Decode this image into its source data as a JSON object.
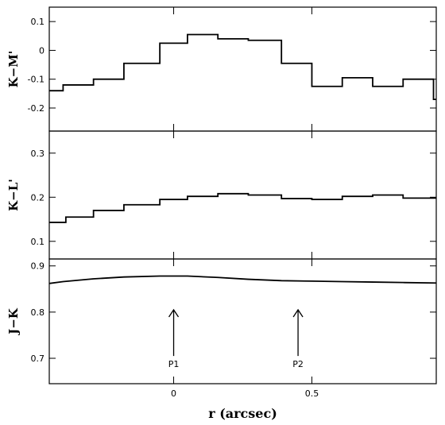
{
  "chart_data": [
    {
      "type": "line",
      "step": true,
      "panel": "top",
      "ylabel": "K−M'",
      "ylim": [
        -0.28,
        0.15
      ],
      "xlim": [
        -0.45,
        0.95
      ],
      "yticks": [
        0.1,
        0,
        -0.1,
        -0.2
      ],
      "ytick_labels": [
        "0.1",
        "0",
        "-0.1",
        "-0.2"
      ],
      "edges": [
        -0.45,
        -0.4,
        -0.29,
        -0.18,
        -0.05,
        0.05,
        0.16,
        0.27,
        0.39,
        0.5,
        0.61,
        0.72,
        0.83,
        0.94,
        0.95
      ],
      "values": [
        -0.14,
        -0.12,
        -0.1,
        -0.045,
        0.025,
        0.055,
        0.04,
        0.035,
        -0.045,
        -0.125,
        -0.095,
        -0.125,
        -0.1,
        -0.17
      ]
    },
    {
      "type": "line",
      "step": true,
      "panel": "middle",
      "ylabel": "K−L'",
      "ylim": [
        0.06,
        0.35
      ],
      "xlim": [
        -0.45,
        0.95
      ],
      "yticks": [
        0.1,
        0.2,
        0.3
      ],
      "ytick_labels": [
        "0.1",
        "0.2",
        "0.3"
      ],
      "edges": [
        -0.45,
        -0.39,
        -0.29,
        -0.18,
        -0.05,
        0.05,
        0.16,
        0.27,
        0.39,
        0.5,
        0.61,
        0.72,
        0.83,
        0.95
      ],
      "values": [
        0.143,
        0.155,
        0.17,
        0.183,
        0.195,
        0.202,
        0.208,
        0.205,
        0.197,
        0.195,
        0.202,
        0.205,
        0.198
      ]
    },
    {
      "type": "line",
      "panel": "bottom",
      "ylabel": "J−K",
      "ylim": [
        0.645,
        0.915
      ],
      "xlim": [
        -0.45,
        0.95
      ],
      "yticks": [
        0.7,
        0.8,
        0.9
      ],
      "ytick_labels": [
        "0.7",
        "0.8",
        "0.9"
      ],
      "xticks": [
        0,
        0.5
      ],
      "xtick_labels": [
        "0",
        "0.5"
      ],
      "xlabel": "r (arcsec)",
      "x": [
        -0.45,
        -0.4,
        -0.29,
        -0.18,
        -0.05,
        0.05,
        0.16,
        0.27,
        0.39,
        0.5,
        0.61,
        0.72,
        0.83,
        0.95
      ],
      "values": [
        0.862,
        0.866,
        0.872,
        0.876,
        0.878,
        0.878,
        0.875,
        0.871,
        0.868,
        0.867,
        0.866,
        0.865,
        0.864,
        0.863
      ],
      "annotations": [
        {
          "label": "P1",
          "x": 0.0
        },
        {
          "label": "P2",
          "x": 0.45
        }
      ]
    }
  ]
}
